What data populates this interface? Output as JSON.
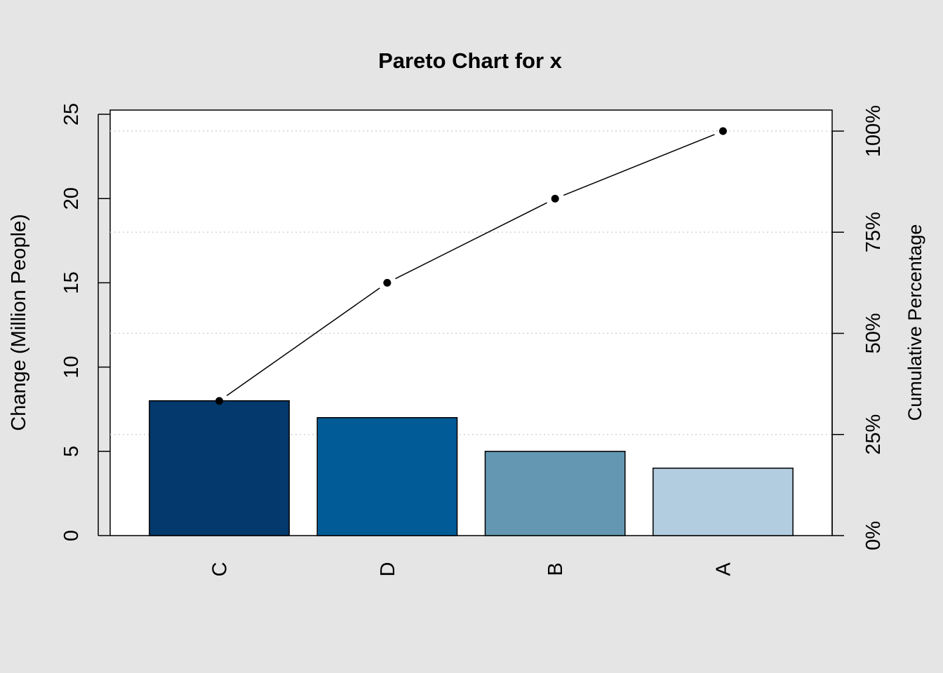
{
  "chart_data": {
    "type": "bar",
    "title": "Pareto Chart for x",
    "categories": [
      "C",
      "D",
      "B",
      "A"
    ],
    "values": [
      8,
      7,
      5,
      4
    ],
    "bar_colors": [
      "#03396c",
      "#005b96",
      "#6497b1",
      "#b3cde0"
    ],
    "cumulative_percent": [
      33.3,
      62.5,
      83.3,
      100
    ],
    "ylabel": "Change (Million People)",
    "ylabel_right": "Cumulative Percentage",
    "ylim": [
      0,
      25
    ],
    "y_ticks": [
      "0",
      "5",
      "10",
      "15",
      "20",
      "25"
    ],
    "y_tick_values": [
      0,
      5,
      10,
      15,
      20,
      25
    ],
    "y2_ticks": [
      "0%",
      "25%",
      "50%",
      "75%",
      "100%"
    ],
    "y2_tick_values": [
      0,
      25,
      50,
      75,
      100
    ],
    "grid": true,
    "grid_style": "dotted horizontal at cumulative percentage ticks"
  }
}
